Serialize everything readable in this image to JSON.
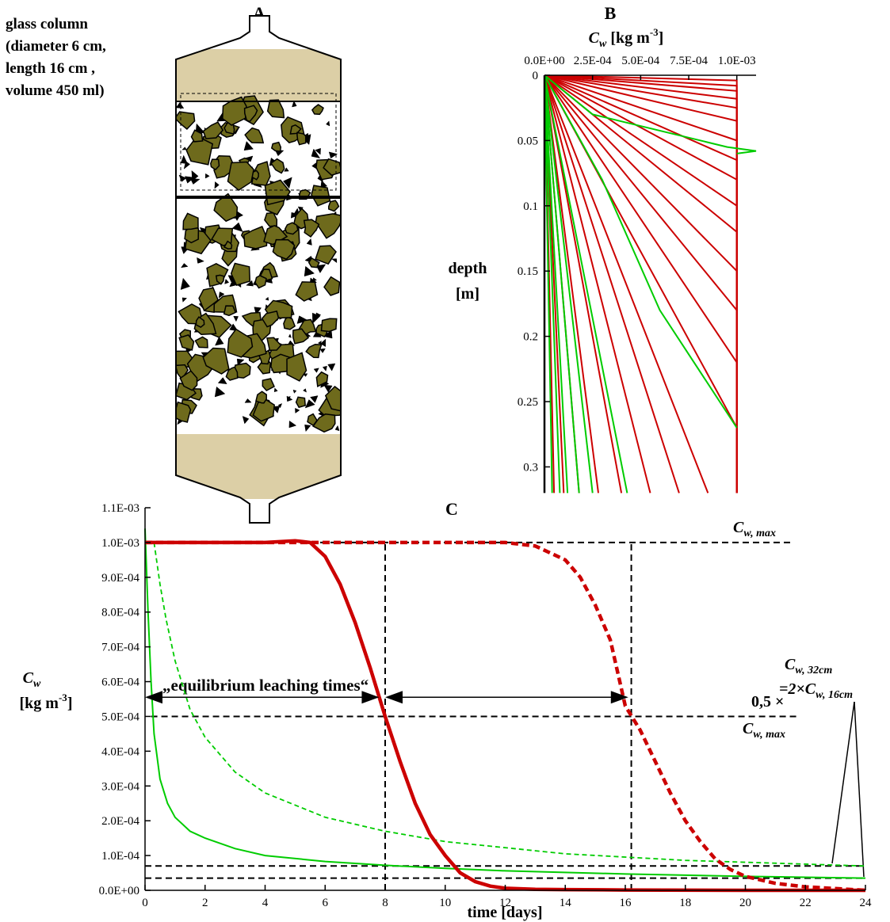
{
  "panel_a": {
    "label": "A",
    "caption": [
      "glass column",
      "(diameter 6 cm,",
      "length 16 cm ,",
      "volume 450 ml)"
    ]
  },
  "chart_data": [
    {
      "type": "profile",
      "label": "B",
      "title": {
        "symbol": "C",
        "sub": "w",
        "unit": " [kg m",
        "sup": "-3",
        "close": "]"
      },
      "ylabel": [
        "depth",
        "[m]"
      ],
      "xlim": [
        0,
        0.0011
      ],
      "xticks": [
        {
          "value": 0,
          "label": "0.0E+00"
        },
        {
          "value": 0.00025,
          "label": "2.5E-04"
        },
        {
          "value": 0.0005,
          "label": "5.0E-04"
        },
        {
          "value": 0.00075,
          "label": "7.5E-04"
        },
        {
          "value": 0.001,
          "label": "1.0E-03"
        }
      ],
      "ylim": [
        0,
        0.32
      ],
      "yticks": [
        0,
        0.05,
        0.1,
        0.15,
        0.2,
        0.25,
        0.3
      ],
      "y_inverted": true,
      "series": [
        {
          "color": "#cc0000",
          "depth": [
            0,
            0.004,
            0.32
          ],
          "values": [
            0,
            0.001,
            0.001
          ]
        },
        {
          "color": "#cc0000",
          "depth": [
            0,
            0.008,
            0.32
          ],
          "values": [
            0,
            0.001,
            0.001
          ]
        },
        {
          "color": "#cc0000",
          "depth": [
            0,
            0.012,
            0.32
          ],
          "values": [
            0,
            0.001,
            0.001
          ]
        },
        {
          "color": "#cc0000",
          "depth": [
            0,
            0.018,
            0.32
          ],
          "values": [
            0,
            0.001,
            0.001
          ]
        },
        {
          "color": "#cc0000",
          "depth": [
            0,
            0.025,
            0.32
          ],
          "values": [
            0,
            0.001,
            0.001
          ]
        },
        {
          "color": "#cc0000",
          "depth": [
            0,
            0.035,
            0.32
          ],
          "values": [
            0,
            0.001,
            0.001
          ]
        },
        {
          "color": "#cc0000",
          "depth": [
            0,
            0.05,
            0.32
          ],
          "values": [
            0,
            0.001,
            0.001
          ]
        },
        {
          "color": "#cc0000",
          "depth": [
            0,
            0.065,
            0.32
          ],
          "values": [
            0,
            0.001,
            0.001
          ]
        },
        {
          "color": "#cc0000",
          "depth": [
            0,
            0.08,
            0.32
          ],
          "values": [
            0,
            0.001,
            0.001
          ]
        },
        {
          "color": "#cc0000",
          "depth": [
            0,
            0.1,
            0.32
          ],
          "values": [
            0,
            0.001,
            0.001
          ]
        },
        {
          "color": "#cc0000",
          "depth": [
            0,
            0.12,
            0.32
          ],
          "values": [
            0,
            0.001,
            0.001
          ]
        },
        {
          "color": "#cc0000",
          "depth": [
            0,
            0.15,
            0.32
          ],
          "values": [
            0,
            0.001,
            0.001
          ]
        },
        {
          "color": "#cc0000",
          "depth": [
            0,
            0.18,
            0.32
          ],
          "values": [
            0,
            0.001,
            0.001
          ]
        },
        {
          "color": "#cc0000",
          "depth": [
            0,
            0.22,
            0.32
          ],
          "values": [
            0,
            0.001,
            0.001
          ]
        },
        {
          "color": "#cc0000",
          "depth": [
            0,
            0.27,
            0.32
          ],
          "values": [
            0,
            0.001,
            0.001
          ]
        },
        {
          "color": "#cc0000",
          "depth": [
            0,
            0.32
          ],
          "values": [
            0,
            0.00085
          ]
        },
        {
          "color": "#cc0000",
          "depth": [
            0,
            0.32
          ],
          "values": [
            0,
            0.0007
          ]
        },
        {
          "color": "#cc0000",
          "depth": [
            0,
            0.32
          ],
          "values": [
            0,
            0.00055
          ]
        },
        {
          "color": "#cc0000",
          "depth": [
            0,
            0.32
          ],
          "values": [
            0,
            0.0004
          ]
        },
        {
          "color": "#cc0000",
          "depth": [
            0,
            0.32
          ],
          "values": [
            0,
            0.00028
          ]
        },
        {
          "color": "#cc0000",
          "depth": [
            0,
            0.32
          ],
          "values": [
            0,
            0.00018
          ]
        },
        {
          "color": "#cc0000",
          "depth": [
            0,
            0.32
          ],
          "values": [
            0,
            0.0001
          ]
        },
        {
          "color": "#cc0000",
          "depth": [
            0,
            0.32
          ],
          "values": [
            0,
            5e-05
          ]
        },
        {
          "color": "#00cc00",
          "depth": [
            0,
            0.32
          ],
          "values": [
            0,
            0.00025
          ]
        },
        {
          "color": "#00cc00",
          "depth": [
            0,
            0.32
          ],
          "values": [
            0,
            0.00018
          ]
        },
        {
          "color": "#00cc00",
          "depth": [
            0,
            0.32
          ],
          "values": [
            0,
            0.00012
          ]
        },
        {
          "color": "#00cc00",
          "depth": [
            0,
            0.32
          ],
          "values": [
            0,
            8e-05
          ]
        },
        {
          "color": "#00cc00",
          "depth": [
            0,
            0.32
          ],
          "values": [
            0,
            4e-05
          ]
        },
        {
          "color": "#00cc00",
          "depth": [
            0,
            0.32
          ],
          "values": [
            0,
            0.00043
          ]
        },
        {
          "color": "#00cc00",
          "depth": [
            0,
            0.08,
            0.18,
            0.27
          ],
          "values": [
            0,
            0.0003,
            0.0006,
            0.001
          ]
        },
        {
          "color": "#00cc00",
          "depth": [
            0,
            0.03,
            0.055,
            0.058,
            0.06
          ],
          "values": [
            0,
            0.00025,
            0.00095,
            0.0011,
            0.001
          ]
        }
      ]
    },
    {
      "type": "line",
      "label": "C",
      "xlabel": "time [days]",
      "ylabel": {
        "symbol": "C",
        "sub": "w",
        "unit": "[kg m",
        "sup": "-3",
        "close": "]"
      },
      "xlim": [
        0,
        24
      ],
      "xticks": [
        0,
        2,
        4,
        6,
        8,
        10,
        12,
        14,
        16,
        18,
        20,
        22,
        24
      ],
      "ylim": [
        0,
        0.0011
      ],
      "yticks": [
        {
          "value": 0,
          "label": "0.0E+00"
        },
        {
          "value": 0.0001,
          "label": "1.0E-04"
        },
        {
          "value": 0.0002,
          "label": "2.0E-04"
        },
        {
          "value": 0.0003,
          "label": "3.0E-04"
        },
        {
          "value": 0.0004,
          "label": "4.0E-04"
        },
        {
          "value": 0.0005,
          "label": "5.0E-04"
        },
        {
          "value": 0.0006,
          "label": "6.0E-04"
        },
        {
          "value": 0.0007,
          "label": "7.0E-04"
        },
        {
          "value": 0.0008,
          "label": "8.0E-04"
        },
        {
          "value": 0.0009,
          "label": "9.0E-04"
        },
        {
          "value": 0.001,
          "label": "1.0E-03"
        },
        {
          "value": 0.0011,
          "label": "1.1E-03"
        }
      ],
      "series": [
        {
          "color": "#00cc00",
          "style": "thin",
          "x": [
            0,
            0.1,
            0.2,
            0.3,
            0.5,
            0.75,
            1,
            1.5,
            2,
            3,
            4,
            6,
            8,
            10,
            12,
            16,
            20,
            24
          ],
          "values": [
            0.00104,
            0.0008,
            0.0006,
            0.00045,
            0.00032,
            0.00025,
            0.00021,
            0.00017,
            0.00015,
            0.00012,
            0.0001,
            8.3e-05,
            7.2e-05,
            6.3e-05,
            5.6e-05,
            4.7e-05,
            4e-05,
            3.5e-05
          ]
        },
        {
          "color": "#00cc00",
          "style": "dashed-thin",
          "x": [
            0.3,
            0.5,
            0.7,
            1,
            1.5,
            2,
            3,
            4,
            6,
            8,
            10,
            14,
            18,
            24
          ],
          "values": [
            0.001,
            0.00088,
            0.00078,
            0.00066,
            0.00052,
            0.00044,
            0.00034,
            0.00028,
            0.00021,
            0.00017,
            0.00014,
            0.000105,
            8.6e-05,
            7e-05
          ]
        },
        {
          "color": "#cc0000",
          "style": "thick",
          "x": [
            0,
            2,
            4,
            5,
            5.5,
            6,
            6.5,
            7,
            7.5,
            8,
            8.5,
            9,
            9.5,
            10,
            10.5,
            11,
            11.5,
            12,
            13,
            14,
            16,
            20,
            24
          ],
          "values": [
            0.001,
            0.001,
            0.001,
            0.001005,
            0.001,
            0.00096,
            0.00088,
            0.00077,
            0.00064,
            0.0005,
            0.00037,
            0.00025,
            0.00016,
            0.0001,
            5e-05,
            2.5e-05,
            1.2e-05,
            6e-06,
            3e-06,
            2e-06,
            1e-06,
            0,
            0
          ]
        },
        {
          "color": "#cc0000",
          "style": "dashed-thick",
          "x": [
            0,
            4,
            8,
            10,
            12,
            13,
            14,
            14.5,
            15,
            15.5,
            16,
            16.5,
            17,
            17.5,
            18,
            18.5,
            19,
            19.5,
            20,
            21,
            22,
            24
          ],
          "values": [
            0.001,
            0.001,
            0.001,
            0.001,
            0.001,
            0.00099,
            0.00095,
            0.0009,
            0.00082,
            0.00072,
            0.00053,
            0.00046,
            0.00037,
            0.00028,
            0.0002,
            0.00014,
            9e-05,
            6e-05,
            4e-05,
            2e-05,
            1e-05,
            0
          ]
        }
      ],
      "reference_lines": [
        {
          "x": [
            0,
            21.6
          ],
          "y": [
            0.001,
            0.001
          ]
        },
        {
          "x": [
            0.2,
            21.8
          ],
          "y": [
            0.0005,
            0.0005
          ]
        },
        {
          "x": [
            0,
            24
          ],
          "y": [
            7e-05,
            7e-05
          ]
        },
        {
          "x": [
            0,
            24
          ],
          "y": [
            3.5e-05,
            3.5e-05
          ]
        },
        {
          "x": [
            8,
            8
          ],
          "y": [
            0,
            0.001
          ]
        },
        {
          "x": [
            16.2,
            16.2
          ],
          "y": [
            0,
            0.001
          ]
        }
      ],
      "arrows": [
        {
          "x": [
            0,
            7.8
          ],
          "y": 0.000555
        },
        {
          "x": [
            8,
            16.1
          ],
          "y": 0.000555
        }
      ],
      "annotations": {
        "cmax": {
          "symbol": "C",
          "sub": "w, max"
        },
        "half": "0,5 ×",
        "cmax2": {
          "symbol": "C",
          "sub": "w, max"
        },
        "c32": {
          "symbol": "C",
          "sub": "w, 32cm"
        },
        "ratio": {
          "pre": "=2×",
          "symbol": "C",
          "sub": "w, 16cm"
        },
        "eq": "„equilibrium leaching times“"
      }
    }
  ]
}
